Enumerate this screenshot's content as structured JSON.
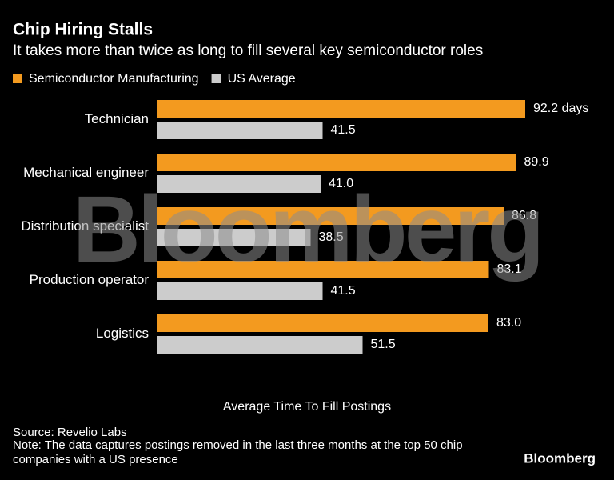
{
  "chart_data": {
    "type": "hbar",
    "title": "Chip Hiring Stalls",
    "subtitle": "It takes more than twice as long to fill several key semiconductor roles",
    "categories": [
      "Technician",
      "Mechanical engineer",
      "Distribution specialist",
      "Production operator",
      "Logistics"
    ],
    "series": [
      {
        "name": "Semiconductor Manufacturing",
        "color": "#f39a1f",
        "values": [
          92.2,
          89.9,
          86.8,
          83.1,
          83.0
        ],
        "value_labels": [
          "92.2 days",
          "89.9",
          "86.8",
          "83.1",
          "83.0"
        ]
      },
      {
        "name": "US Average",
        "color": "#cccccc",
        "values": [
          41.5,
          41.0,
          38.5,
          41.5,
          51.5
        ],
        "value_labels": [
          "41.5",
          "41.0",
          "38.5",
          "41.5",
          "51.5"
        ]
      }
    ],
    "xlim": [
      0,
      100
    ],
    "x_label": "Average Time To Fill Postings",
    "source": "Source: Revelio Labs",
    "note": "Note: The data captures postings removed in the last three months at the top 50 chip companies with a US presence",
    "watermark": "Bloomberg",
    "logo": "Bloomberg"
  }
}
